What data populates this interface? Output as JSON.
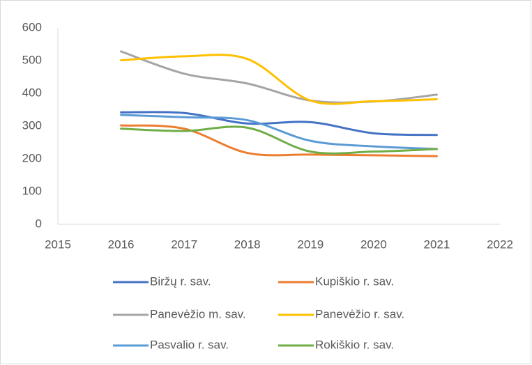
{
  "chart_data": {
    "type": "line",
    "smooth": true,
    "legend": "bottom",
    "x": [
      2016,
      2017,
      2018,
      2019,
      2020,
      2021
    ],
    "xlim": [
      2015,
      2022
    ],
    "xticks": [
      2015,
      2016,
      2017,
      2018,
      2019,
      2020,
      2021,
      2022
    ],
    "ylim": [
      0,
      600
    ],
    "yticks": [
      0,
      100,
      200,
      300,
      400,
      500,
      600
    ],
    "series": [
      {
        "name": "Biržų r. sav.",
        "color": "#4472c4",
        "values": [
          342,
          340,
          308,
          312,
          278,
          273
        ]
      },
      {
        "name": "Kupiškio r. sav.",
        "color": "#ed7d31",
        "values": [
          302,
          292,
          218,
          213,
          211,
          208
        ]
      },
      {
        "name": "Panevėžio m. sav.",
        "color": "#a5a5a5",
        "values": [
          528,
          460,
          430,
          378,
          375,
          396
        ]
      },
      {
        "name": "Panevėžio r. sav.",
        "color": "#ffc000",
        "values": [
          501,
          513,
          505,
          378,
          376,
          382
        ]
      },
      {
        "name": "Pasvalio r. sav.",
        "color": "#5b9bd5",
        "values": [
          334,
          327,
          318,
          255,
          238,
          230
        ]
      },
      {
        "name": "Rokiškio r. sav.",
        "color": "#70ad47",
        "values": [
          292,
          285,
          295,
          222,
          222,
          230
        ]
      }
    ]
  }
}
